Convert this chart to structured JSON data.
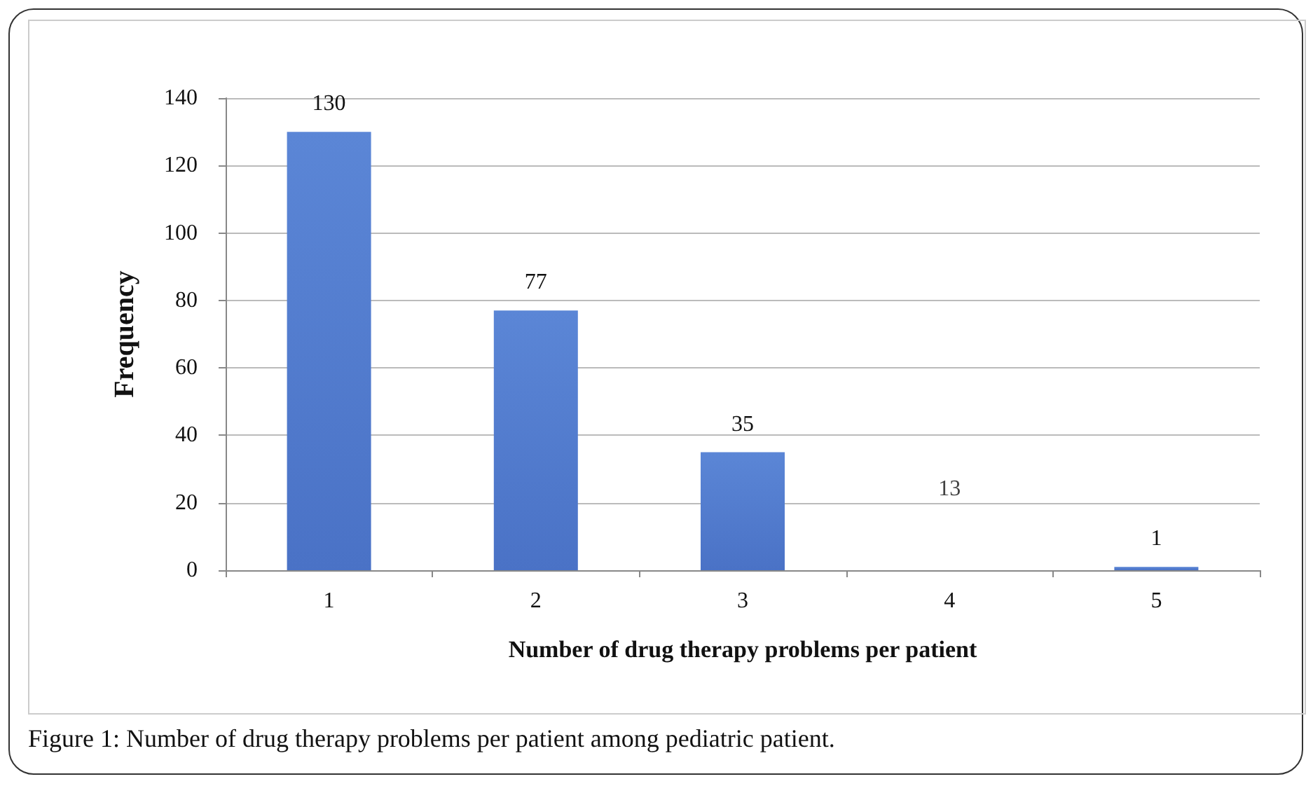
{
  "chart_data": {
    "type": "bar",
    "xlabel": "Number of drug therapy problems per patient",
    "ylabel": "Frequency",
    "categories": [
      "1",
      "2",
      "3",
      "4",
      "5"
    ],
    "values": [
      130,
      77,
      35,
      null,
      1
    ],
    "value_labels": [
      "130",
      "77",
      "35",
      "13",
      "1"
    ],
    "color": "#4a72c6",
    "ylim": [
      0,
      140
    ],
    "yticks": [
      0,
      20,
      40,
      60,
      80,
      100,
      120,
      140
    ],
    "grid": "y",
    "annotations": [
      "Figure 1: Number of drug therapy problems per patient among pediatric patient."
    ]
  }
}
